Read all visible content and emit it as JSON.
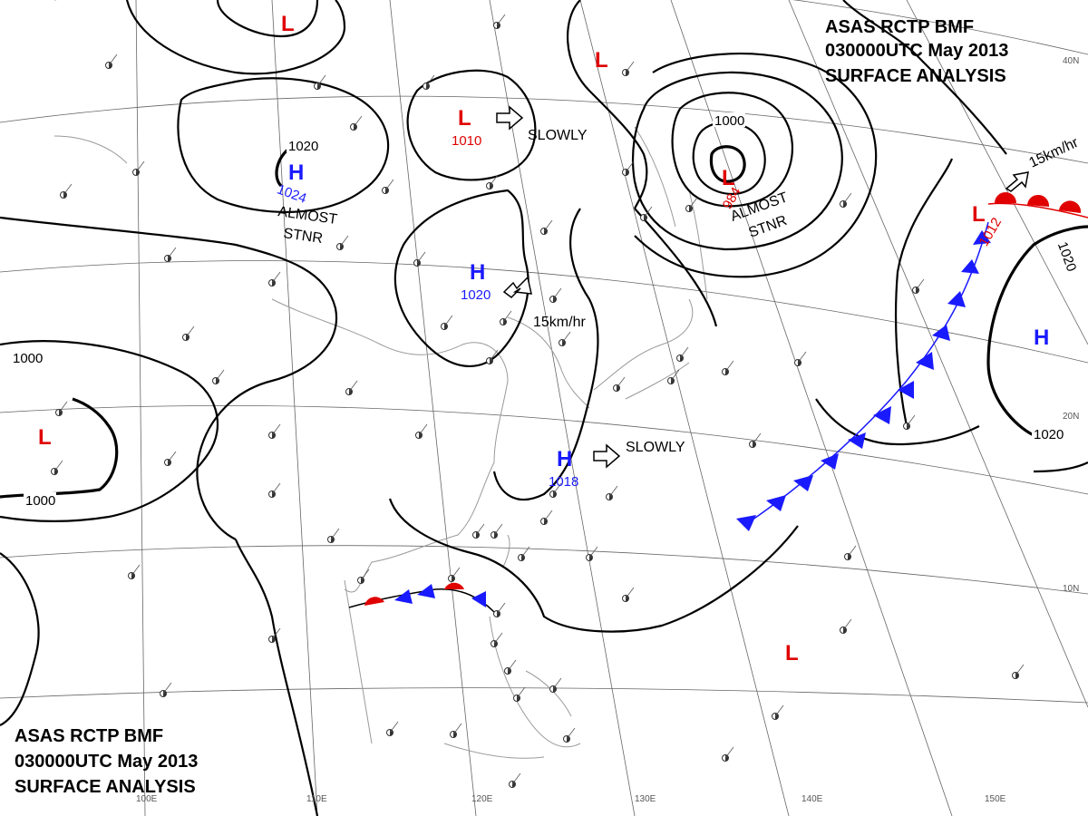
{
  "title_top": {
    "line1": "ASAS      RCTP     BMF",
    "line2": "030000UTC     May     2013",
    "line3": "SURFACE  ANALYSIS"
  },
  "title_bottom": {
    "line1": "ASAS      RCTP     BMF",
    "line2": "030000UTC     May     2013",
    "line3": "SURFACE  ANALYSIS"
  },
  "lows": [
    {
      "id": "low-north-center",
      "symbol": "L",
      "pressure": "1010"
    },
    {
      "id": "low-east-deep",
      "symbol": "L",
      "pressure": "984"
    },
    {
      "id": "low-pacific-front",
      "symbol": "L",
      "pressure": "1012"
    }
  ],
  "highs": [
    {
      "id": "high-west",
      "symbol": "H",
      "pressure": "1024"
    },
    {
      "id": "high-north-china",
      "symbol": "H",
      "pressure": "1020"
    },
    {
      "id": "high-east-china-sea",
      "symbol": "H",
      "pressure": "1018"
    },
    {
      "id": "high-pacific",
      "symbol": "H"
    }
  ],
  "unlabeled_lows": [
    "L",
    "L",
    "L",
    "L"
  ],
  "movements": {
    "slowly_north": "SLOWLY",
    "slowly_south": "SLOWLY",
    "speed_center": "15km/hr",
    "speed_east": "15km/hr",
    "almost_stnr_west_1": "ALMOST",
    "almost_stnr_west_2": "STNR",
    "almost_stnr_east_1": "ALMOST",
    "almost_stnr_east_2": "STNR"
  },
  "isobar_labels": [
    "1020",
    "1000",
    "1000",
    "1000",
    "1020",
    "1020"
  ],
  "longitudes": [
    "100E",
    "110E",
    "120E",
    "130E",
    "140E",
    "150E"
  ],
  "latitudes": [
    "40N",
    "20N",
    "10N"
  ],
  "colors": {
    "low": "#e00000",
    "high": "#1a1aff",
    "isobar": "#000000",
    "coast": "#9a9a9a",
    "warm_front": "#e00000",
    "cold_front": "#1a1aff"
  }
}
